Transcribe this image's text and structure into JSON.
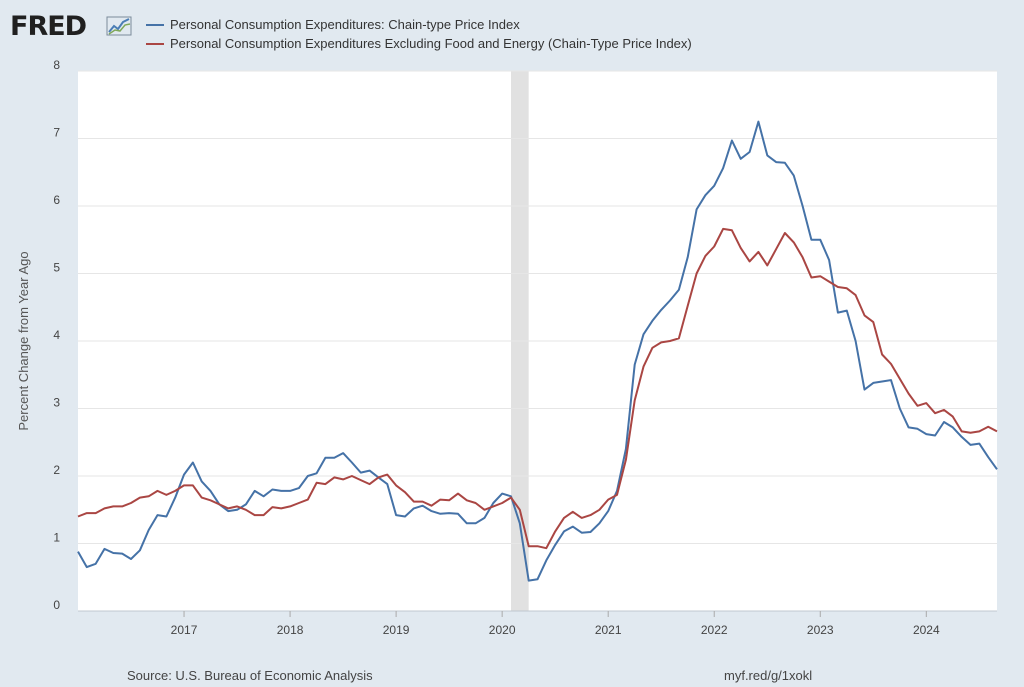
{
  "header": {
    "logo_text": "FRED",
    "logo_icon": "chart-line-icon"
  },
  "legend": [
    {
      "label": "Personal Consumption Expenditures: Chain-type Price Index",
      "color": "#4572a7"
    },
    {
      "label": "Personal Consumption Expenditures Excluding Food and Energy (Chain-Type Price Index)",
      "color": "#aa4643"
    }
  ],
  "footer": {
    "source": "Source: U.S. Bureau of Economic Analysis",
    "link": "myf.red/g/1xokl"
  },
  "colors": {
    "background": "#e1e9f0",
    "plot_background": "#ffffff",
    "recession_band": "#e1e1e1",
    "grid": "#e6e6e6"
  },
  "chart_data": {
    "type": "line",
    "ylabel": "Percent Change from Year Ago",
    "ylim": [
      0,
      8
    ],
    "yticks": [
      "0",
      "1",
      "2",
      "3",
      "4",
      "5",
      "6",
      "7",
      "8"
    ],
    "xticks": [
      "2017",
      "2018",
      "2019",
      "2020",
      "2021",
      "2022",
      "2023",
      "2024"
    ],
    "x_start": "2016-01",
    "x_end": "2024-09",
    "grid": true,
    "legend_position": "top",
    "recession": {
      "start": "2020-02",
      "end": "2020-04"
    },
    "series": [
      {
        "name": "Personal Consumption Expenditures: Chain-type Price Index",
        "color": "#4572a7",
        "values": [
          0.88,
          0.65,
          0.7,
          0.92,
          0.86,
          0.85,
          0.77,
          0.9,
          1.2,
          1.42,
          1.4,
          1.68,
          2.02,
          2.2,
          1.92,
          1.78,
          1.58,
          1.48,
          1.5,
          1.58,
          1.78,
          1.7,
          1.8,
          1.78,
          1.78,
          1.82,
          2.0,
          2.04,
          2.27,
          2.27,
          2.34,
          2.2,
          2.05,
          2.08,
          1.98,
          1.88,
          1.42,
          1.4,
          1.52,
          1.56,
          1.48,
          1.44,
          1.45,
          1.44,
          1.3,
          1.3,
          1.38,
          1.6,
          1.74,
          1.7,
          1.3,
          0.45,
          0.47,
          0.75,
          0.98,
          1.18,
          1.25,
          1.16,
          1.17,
          1.3,
          1.48,
          1.78,
          2.4,
          3.65,
          4.1,
          4.3,
          4.46,
          4.6,
          4.76,
          5.24,
          5.95,
          6.16,
          6.3,
          6.56,
          6.97,
          6.7,
          6.8,
          7.25,
          6.75,
          6.65,
          6.64,
          6.45,
          6.0,
          5.5,
          5.5,
          5.2,
          4.42,
          4.45,
          4.0,
          3.28,
          3.38,
          3.4,
          3.42,
          3.0,
          2.72,
          2.7,
          2.62,
          2.6,
          2.8,
          2.72,
          2.58,
          2.46,
          2.48,
          2.28,
          2.1
        ]
      },
      {
        "name": "Personal Consumption Expenditures Excluding Food and Energy (Chain-Type Price Index)",
        "color": "#aa4643",
        "values": [
          1.4,
          1.45,
          1.45,
          1.52,
          1.55,
          1.55,
          1.6,
          1.68,
          1.7,
          1.78,
          1.72,
          1.78,
          1.86,
          1.86,
          1.68,
          1.64,
          1.58,
          1.52,
          1.55,
          1.5,
          1.42,
          1.42,
          1.54,
          1.52,
          1.55,
          1.6,
          1.65,
          1.9,
          1.88,
          1.98,
          1.95,
          2.0,
          1.94,
          1.88,
          1.98,
          2.02,
          1.86,
          1.76,
          1.62,
          1.62,
          1.56,
          1.65,
          1.64,
          1.74,
          1.64,
          1.6,
          1.5,
          1.55,
          1.6,
          1.68,
          1.5,
          0.96,
          0.96,
          0.93,
          1.18,
          1.38,
          1.47,
          1.38,
          1.42,
          1.5,
          1.65,
          1.72,
          2.24,
          3.12,
          3.62,
          3.9,
          3.98,
          4.0,
          4.04,
          4.52,
          5.0,
          5.26,
          5.4,
          5.66,
          5.64,
          5.38,
          5.18,
          5.32,
          5.12,
          5.36,
          5.6,
          5.46,
          5.24,
          4.94,
          4.96,
          4.88,
          4.8,
          4.78,
          4.68,
          4.38,
          4.28,
          3.8,
          3.66,
          3.44,
          3.22,
          3.04,
          3.08,
          2.93,
          2.98,
          2.88,
          2.66,
          2.64,
          2.66,
          2.73,
          2.66
        ]
      }
    ]
  }
}
